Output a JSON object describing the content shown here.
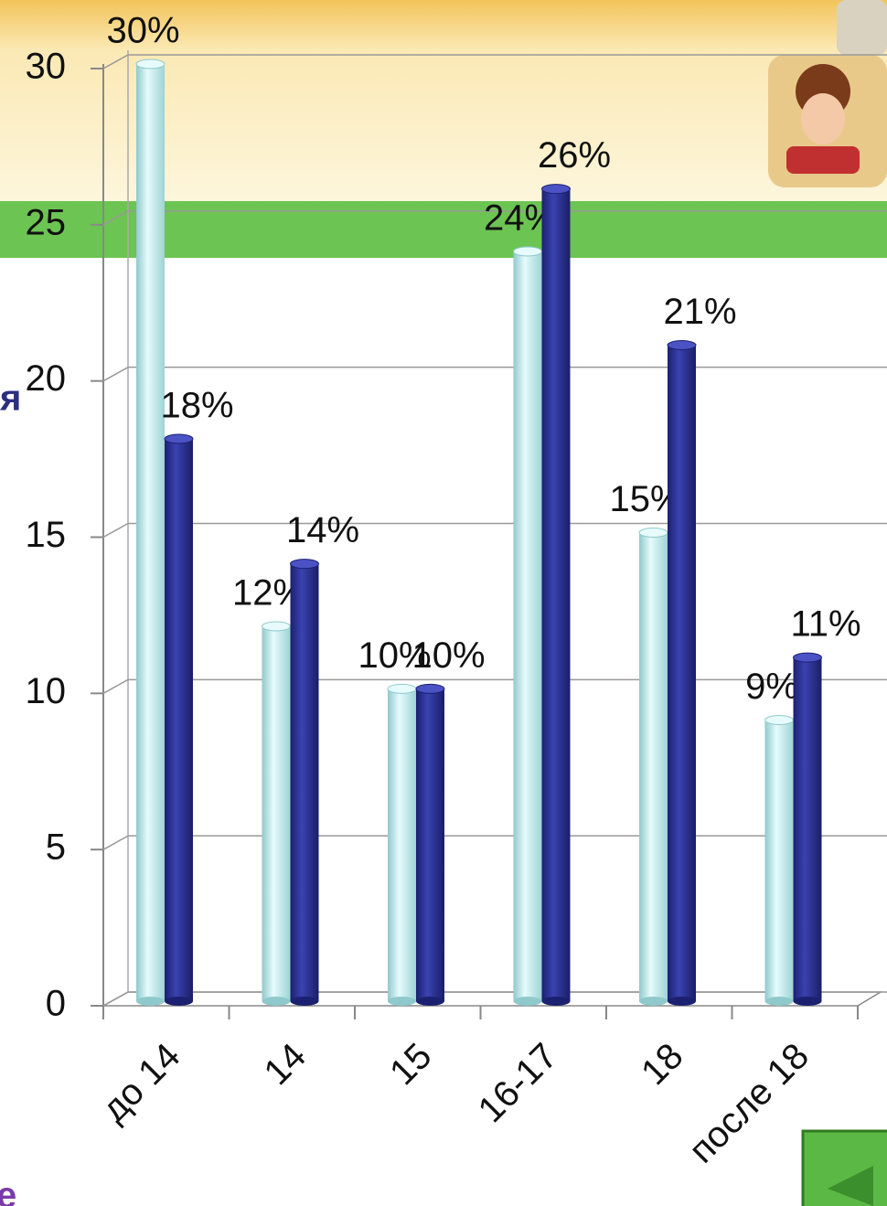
{
  "chart_data": {
    "type": "bar",
    "categories": [
      "до 14",
      "14",
      "15",
      "16-17",
      "18",
      "после 18"
    ],
    "series": [
      {
        "color": "#bfe8ea",
        "values": [
          30,
          12,
          10,
          24,
          15,
          9
        ],
        "value_labels": [
          "30%",
          "12%",
          "10%",
          "24%",
          "15%",
          "9%"
        ]
      },
      {
        "color": "#2b3192",
        "values": [
          18,
          14,
          10,
          26,
          21,
          11
        ],
        "value_labels": [
          "18%",
          "14%",
          "10%",
          "26%",
          "21%",
          "11%"
        ]
      }
    ],
    "ylim": [
      0,
      30
    ],
    "yticks": [
      0,
      5,
      10,
      15,
      20,
      25,
      30
    ],
    "grid": true
  },
  "background_text": [
    "я",
    "е"
  ]
}
